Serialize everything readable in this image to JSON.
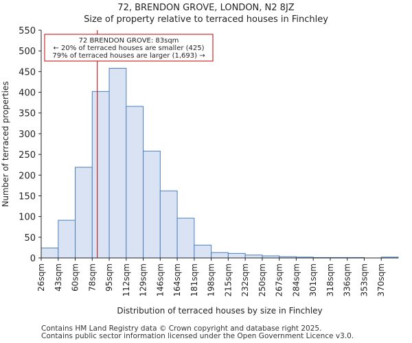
{
  "header": {
    "title": "72, BRENDON GROVE, LONDON, N2 8JZ",
    "subtitle": "Size of property relative to terraced houses in Finchley"
  },
  "footer": {
    "line1": "Contains HM Land Registry data © Crown copyright and database right 2025.",
    "line2": "Contains public sector information licensed under the Open Government Licence v3.0."
  },
  "chart_data": {
    "type": "bar",
    "title": "Size of property relative to terraced houses in Finchley",
    "xlabel": "Distribution of terraced houses by size in Finchley",
    "ylabel": "Number of terraced properties",
    "ylim": [
      0,
      550
    ],
    "yticks": [
      0,
      50,
      100,
      150,
      200,
      250,
      300,
      350,
      400,
      450,
      500,
      550
    ],
    "categories": [
      "26sqm",
      "43sqm",
      "60sqm",
      "78sqm",
      "95sqm",
      "112sqm",
      "129sqm",
      "146sqm",
      "164sqm",
      "181sqm",
      "198sqm",
      "215sqm",
      "232sqm",
      "250sqm",
      "267sqm",
      "284sqm",
      "301sqm",
      "318sqm",
      "336sqm",
      "353sqm",
      "370sqm"
    ],
    "values": [
      24,
      91,
      219,
      402,
      458,
      366,
      258,
      162,
      96,
      31,
      13,
      11,
      7,
      5,
      3,
      2,
      1,
      1,
      1,
      0,
      2
    ],
    "bar_color": "#dae3f3",
    "bar_edge_color": "#4a7ebb",
    "marker": {
      "value_sqm": 83,
      "position_units": 3.3,
      "color": "#c00000",
      "label_lines": [
        "72 BRENDON GROVE: 83sqm",
        "← 20% of terraced houses are smaller (425)",
        "79% of terraced houses are larger (1,693) →"
      ]
    },
    "grid": false
  }
}
